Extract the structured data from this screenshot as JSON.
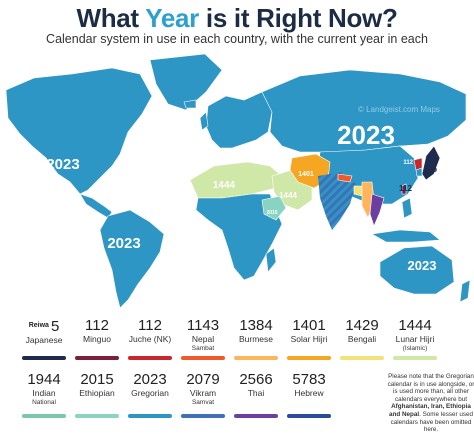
{
  "header": {
    "title_part1": "What ",
    "title_accent": "Year",
    "title_part2": " is it Right Now?",
    "subtitle": "Calendar system in use in each country, with the current year in each"
  },
  "colors": {
    "ocean": "#ffffff",
    "gregorian": "#2e96c4",
    "gregorian_light": "#45a9d5",
    "ethiopian": "#89d3c2",
    "lunar_hijri": "#cfe8a8",
    "solar_hijri": "#f5a623",
    "bengali": "#f2e27a",
    "burmese": "#ffb55c",
    "nepal_sambat": "#f05a2a",
    "juche": "#c7282e",
    "minguo": "#7b1f3a",
    "japanese": "#1e2b4e",
    "vikram_samvat": "#3f6fb5",
    "thai": "#6b3fa0",
    "indian_national": "#79c9a8",
    "hebrew": "#2a4d9b",
    "title_dark": "#1c2c44",
    "title_accent": "#2f9fd0"
  },
  "map": {
    "watermark": "© Landgeist.com  Maps",
    "labels": {
      "russia": "2023",
      "north_america": "2023",
      "south_america": "2023",
      "australia": "2023",
      "arabia": "1444",
      "north_africa": "1444",
      "iran": "1401",
      "ethiopia": "2015",
      "taiwan": "112",
      "north_korea": "112",
      "japan": "5"
    }
  },
  "legend": {
    "items": [
      {
        "key": "japanese",
        "prefix": "Reiwa",
        "year": "5",
        "label": "Japanese",
        "sub": "",
        "color": "#1e2b4e"
      },
      {
        "key": "minguo",
        "prefix": "",
        "year": "112",
        "label": "Minguo",
        "sub": "",
        "color": "#7b1f3a"
      },
      {
        "key": "juche",
        "prefix": "",
        "year": "112",
        "label": "Juche (NK)",
        "sub": "",
        "color": "#c7282e"
      },
      {
        "key": "nepal_sambat",
        "prefix": "",
        "year": "1143",
        "label": "Nepal",
        "sub": "Sambat",
        "color": "#f05a2a"
      },
      {
        "key": "burmese",
        "prefix": "",
        "year": "1384",
        "label": "Burmese",
        "sub": "",
        "color": "#ffb55c"
      },
      {
        "key": "solar_hijri",
        "prefix": "",
        "year": "1401",
        "label": "Solar Hijri",
        "sub": "",
        "color": "#f5a623"
      },
      {
        "key": "bengali",
        "prefix": "",
        "year": "1429",
        "label": "Bengali",
        "sub": "",
        "color": "#f2e27a"
      },
      {
        "key": "lunar_hijri",
        "prefix": "",
        "year": "1444",
        "label": "Lunar Hijri",
        "sub": "(Islamic)",
        "color": "#cfe8a8"
      },
      {
        "key": "indian_national",
        "prefix": "",
        "year": "1944",
        "label": "Indian",
        "sub": "National",
        "color": "#79c9a8"
      },
      {
        "key": "ethiopian",
        "prefix": "",
        "year": "2015",
        "label": "Ethiopian",
        "sub": "",
        "color": "#89d3c2"
      },
      {
        "key": "gregorian",
        "prefix": "",
        "year": "2023",
        "label": "Gregorian",
        "sub": "",
        "color": "#2e96c4"
      },
      {
        "key": "vikram_samvat",
        "prefix": "",
        "year": "2079",
        "label": "Vikram",
        "sub": "Samvat",
        "color": "#3f6fb5"
      },
      {
        "key": "thai",
        "prefix": "",
        "year": "2566",
        "label": "Thai",
        "sub": "",
        "color": "#6b3fa0"
      },
      {
        "key": "hebrew",
        "prefix": "",
        "year": "5783",
        "label": "Hebrew",
        "sub": "",
        "color": "#2a4d9b"
      }
    ],
    "note_part1": "Please note that the Gregorian calendar is in use alongside, or is used more than, all other calendars everywhere but ",
    "note_bold": "Afghanistan, Iran, Ethiopia and Nepal",
    "note_part2": ". Some lesser used calendars have been omitted here."
  }
}
